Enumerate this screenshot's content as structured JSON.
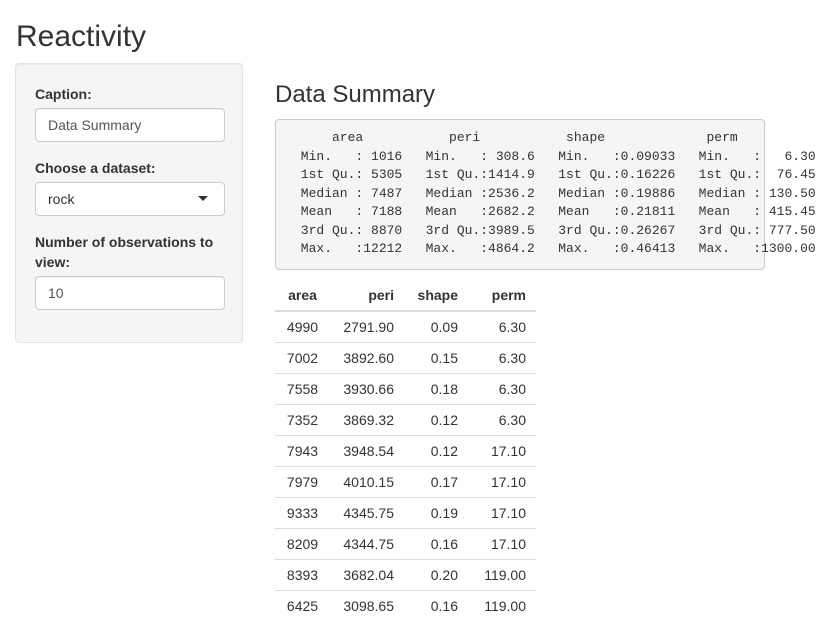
{
  "page": {
    "title": "Reactivity"
  },
  "sidebar": {
    "caption": {
      "label": "Caption:",
      "value": "Data Summary"
    },
    "dataset": {
      "label": "Choose a dataset:",
      "value": "rock"
    },
    "obs": {
      "label": "Number of observations to view:",
      "value": "10"
    }
  },
  "main": {
    "heading": "Data Summary",
    "summary_text": "     area           peri           shape             perm      \n Min.   : 1016   Min.   : 308.6   Min.   :0.09033   Min.   :   6.30  \n 1st Qu.: 5305   1st Qu.:1414.9   1st Qu.:0.16226   1st Qu.:  76.45  \n Median : 7487   Median :2536.2   Median :0.19886   Median : 130.50  \n Mean   : 7188   Mean   :2682.2   Mean   :0.21811   Mean   : 415.45  \n 3rd Qu.: 8870   3rd Qu.:3989.5   3rd Qu.:0.26267   3rd Qu.: 777.50  \n Max.   :12212   Max.   :4864.2   Max.   :0.46413   Max.   :1300.00  ",
    "table": {
      "headers": [
        "area",
        "peri",
        "shape",
        "perm"
      ],
      "rows": [
        [
          "4990",
          "2791.90",
          "0.09",
          "6.30"
        ],
        [
          "7002",
          "3892.60",
          "0.15",
          "6.30"
        ],
        [
          "7558",
          "3930.66",
          "0.18",
          "6.30"
        ],
        [
          "7352",
          "3869.32",
          "0.12",
          "6.30"
        ],
        [
          "7943",
          "3948.54",
          "0.12",
          "17.10"
        ],
        [
          "7979",
          "4010.15",
          "0.17",
          "17.10"
        ],
        [
          "9333",
          "4345.75",
          "0.19",
          "17.10"
        ],
        [
          "8209",
          "4344.75",
          "0.16",
          "17.10"
        ],
        [
          "8393",
          "3682.04",
          "0.20",
          "119.00"
        ],
        [
          "6425",
          "3098.65",
          "0.16",
          "119.00"
        ]
      ]
    }
  }
}
